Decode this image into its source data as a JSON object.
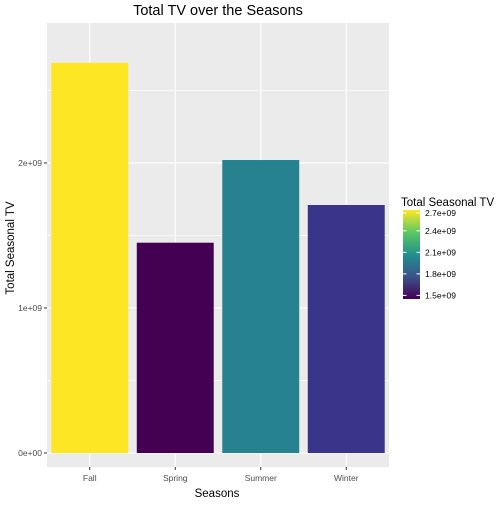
{
  "chart_data": {
    "type": "bar",
    "title": "Total TV over the Seasons",
    "xlabel": "Seasons",
    "ylabel": "Total Seasonal TV",
    "categories": [
      "Fall",
      "Spring",
      "Summer",
      "Winter"
    ],
    "values": [
      2690000000,
      1450000000,
      2020000000,
      1710000000
    ],
    "bar_colors": [
      "#FDE725",
      "#440154",
      "#26828E",
      "#39358B"
    ],
    "ylim": [
      0,
      2820000000
    ],
    "y_ticks": [
      {
        "value": 0,
        "label": "0e+00"
      },
      {
        "value": 1000000000,
        "label": "1e+09"
      },
      {
        "value": 2000000000,
        "label": "2e+09"
      }
    ],
    "y_minor_ticks": [
      500000000,
      1500000000,
      2500000000
    ],
    "grid": true,
    "panel_background": "#EBEBEB",
    "grid_color": "#FFFFFF",
    "legend": {
      "title": "Total Seasonal TV",
      "placement": "right",
      "type": "colorbar",
      "min": 1450000000,
      "max": 2690000000,
      "colors": [
        "#440154",
        "#3B528B",
        "#21908C",
        "#5DC863",
        "#FDE725"
      ],
      "ticks": [
        {
          "value": 1500000000,
          "label": "1.5e+09"
        },
        {
          "value": 1800000000,
          "label": "1.8e+09"
        },
        {
          "value": 2100000000,
          "label": "2.1e+09"
        },
        {
          "value": 2400000000,
          "label": "2.4e+09"
        },
        {
          "value": 2700000000,
          "label": "2.7e+09"
        }
      ]
    }
  }
}
